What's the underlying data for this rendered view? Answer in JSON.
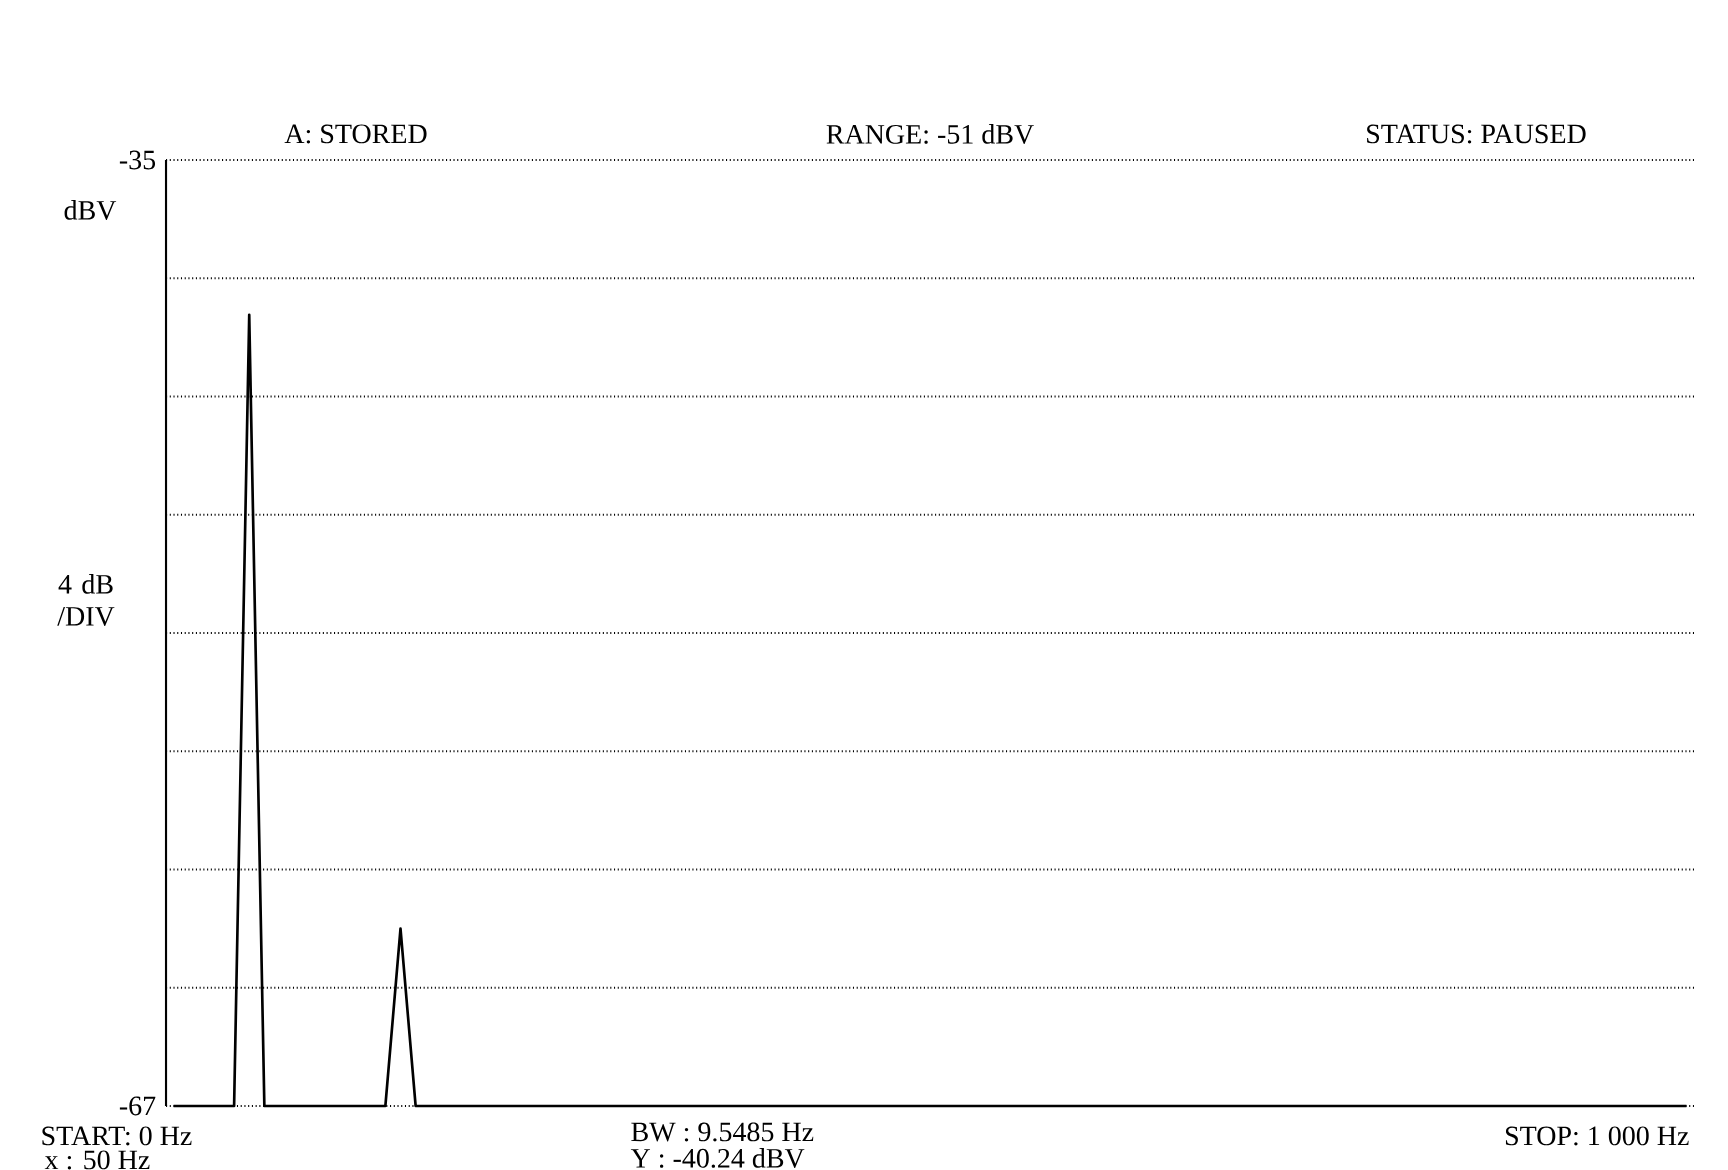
{
  "chart_data": {
    "type": "line",
    "ylabel": "4 dB /DIV",
    "annotations": [
      "A: STORED",
      "RANGE: -51 dBV",
      "STATUS: PAUSED",
      "dBV",
      "START: 0 Hz",
      "x : 50 Hz",
      "BW : 9.5485 Hz",
      "Y : -40.24 dBV",
      "STOP: 1 000 Hz"
    ],
    "categories": [
      null,
      null,
      null,
      null,
      null,
      null,
      null,
      null,
      null,
      null,
      null,
      null,
      null,
      null,
      null,
      null,
      null,
      null,
      null,
      null,
      null,
      null,
      null,
      null,
      null,
      null,
      null,
      null,
      null,
      null,
      null,
      null,
      null,
      null,
      null,
      null,
      null,
      null,
      null,
      null,
      null,
      null,
      null,
      null,
      null,
      null,
      null,
      null,
      null,
      null,
      null,
      null,
      null,
      null,
      null,
      null,
      null,
      null,
      null,
      null,
      null,
      null,
      null,
      null,
      null,
      null,
      null,
      null,
      null,
      null,
      null,
      null,
      null,
      null,
      null,
      null,
      null,
      null,
      null,
      null,
      null,
      null,
      null,
      null,
      null,
      null,
      null,
      null,
      null,
      null,
      null,
      null,
      null,
      null,
      null,
      null,
      null,
      null,
      null,
      null,
      null
    ],
    "series": [
      {
        "color": "#000000",
        "values": [
          -67,
          -67,
          -67,
          -67,
          -67,
          -40.24,
          -67,
          -67,
          -67,
          -67,
          -67,
          -67,
          -67,
          -67,
          -67,
          -61,
          -67,
          -67,
          -67,
          -67,
          -67,
          -67,
          -67,
          -67,
          -67,
          -67,
          -67,
          -67,
          -67,
          -67,
          -67,
          -67,
          -67,
          -67,
          -67,
          -67,
          -67,
          -67,
          -67,
          -67,
          -67,
          -67,
          -67,
          -67,
          -67,
          -67,
          -67,
          -67,
          -67,
          -67,
          -67,
          -67,
          -67,
          -67,
          -67,
          -67,
          -67,
          -67,
          -67,
          -67,
          -67,
          -67,
          -67,
          -67,
          -67,
          -67,
          -67,
          -67,
          -67,
          -67,
          -67,
          -67,
          -67,
          -67,
          -67,
          -67,
          -67,
          -67,
          -67,
          -67,
          -67,
          -67,
          -67,
          -67,
          -67,
          -67,
          -67,
          -67,
          -67,
          -67,
          -67,
          -67,
          -67,
          -67,
          -67,
          -67,
          -67,
          -67,
          -67,
          -67,
          -67
        ]
      }
    ],
    "ylim": [
      -67,
      -35
    ],
    "yticks": [
      -67,
      {
        "value": -63,
        "label": null
      },
      {
        "value": -59,
        "label": null
      },
      {
        "value": -55,
        "label": null
      },
      {
        "value": -51,
        "label": null
      },
      {
        "value": -47,
        "label": null
      },
      {
        "value": -43,
        "label": null
      },
      {
        "value": -39,
        "label": null
      },
      -35
    ],
    "tick_labels": "y",
    "grid": "y",
    "marker": "none",
    "line_style": "solid"
  }
}
